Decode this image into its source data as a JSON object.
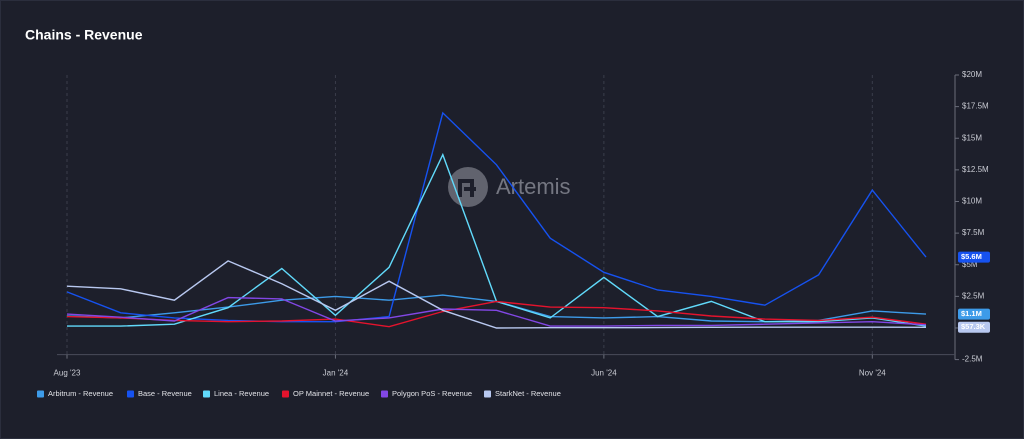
{
  "chart_data": {
    "type": "line",
    "title": "Chains - Revenue",
    "watermark": "Artemis",
    "categories": [
      "Aug '23",
      null,
      null,
      null,
      null,
      "Jan '24",
      null,
      null,
      null,
      null,
      "Jun '24",
      null,
      null,
      null,
      null,
      "Nov '24",
      null
    ],
    "ylim": [
      -2500000,
      20000000
    ],
    "yticks": [
      {
        "value": 20000000,
        "label": "$20M"
      },
      {
        "value": 17500000,
        "label": "$17.5M"
      },
      {
        "value": 15000000,
        "label": "$15M"
      },
      {
        "value": 12500000,
        "label": "$12.5M"
      },
      {
        "value": 10000000,
        "label": "$10M"
      },
      {
        "value": 7500000,
        "label": "$7.5M"
      },
      {
        "value": 5000000,
        "label": "$5M"
      },
      {
        "value": 2500000,
        "label": "$2.5M"
      },
      {
        "value": 0,
        "label": "$-"
      },
      {
        "value": -2500000,
        "label": "-2.5M"
      }
    ],
    "grid": "x",
    "legend": "bottom",
    "series": [
      {
        "name": "Arbitrum - Revenue",
        "color": "#3d9be9",
        "values": [
          950000,
          800000,
          1200000,
          1650000,
          2200000,
          2500000,
          2200000,
          2600000,
          2100000,
          900000,
          800000,
          900000,
          550000,
          500000,
          600000,
          1350000,
          1100000
        ],
        "value_labels": [
          null,
          null,
          null,
          null,
          null,
          null,
          null,
          null,
          null,
          null,
          null,
          null,
          null,
          null,
          null,
          null,
          "$1.1M"
        ]
      },
      {
        "name": "Base - Revenue",
        "color": "#1652f0",
        "values": [
          2850000,
          1200000,
          800000,
          600000,
          500000,
          500000,
          900000,
          17000000,
          12900000,
          7100000,
          4400000,
          3000000,
          2500000,
          1800000,
          4200000,
          10900000,
          5600000
        ],
        "value_labels": [
          null,
          null,
          null,
          null,
          null,
          null,
          null,
          null,
          null,
          null,
          null,
          null,
          null,
          null,
          null,
          null,
          "$5.6M"
        ]
      },
      {
        "name": "Linea - Revenue",
        "color": "#61dafb",
        "values": [
          150000,
          150000,
          300000,
          1600000,
          4700000,
          1000000,
          4800000,
          13700000,
          2100000,
          800000,
          4000000,
          900000,
          2100000,
          500000,
          500000,
          800000,
          150000
        ]
      },
      {
        "name": "OP Mainnet - Revenue",
        "color": "#e5132d",
        "values": [
          900000,
          800000,
          600000,
          500000,
          550000,
          700000,
          100000,
          1300000,
          2100000,
          1650000,
          1600000,
          1350000,
          950000,
          700000,
          600000,
          850000,
          300000
        ]
      },
      {
        "name": "Polygon PoS - Revenue",
        "color": "#8247e5",
        "values": [
          1100000,
          850000,
          550000,
          2400000,
          2300000,
          550000,
          800000,
          1500000,
          1400000,
          150000,
          150000,
          200000,
          200000,
          300000,
          400000,
          500000,
          250000
        ]
      },
      {
        "name": "StarkNet - Revenue",
        "color": "#b8c8f0",
        "values": [
          3300000,
          3100000,
          2200000,
          5300000,
          3500000,
          1400000,
          3700000,
          1400000,
          0,
          20000,
          20000,
          30000,
          50000,
          60000,
          60000,
          60000,
          57300
        ],
        "value_labels": [
          null,
          null,
          null,
          null,
          null,
          null,
          null,
          null,
          null,
          null,
          null,
          null,
          null,
          null,
          null,
          null,
          "$57.3K"
        ]
      }
    ]
  }
}
